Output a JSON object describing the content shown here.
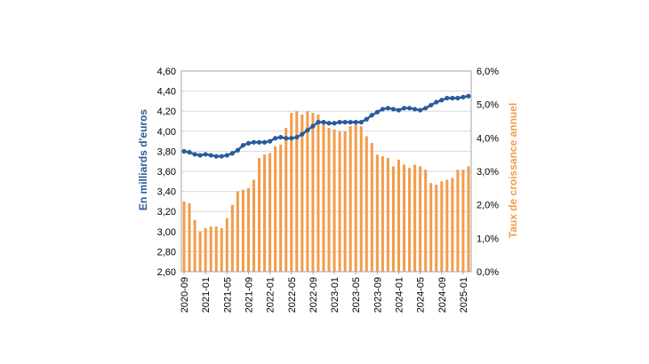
{
  "chart_data": {
    "type": "bar+line",
    "title": "",
    "xlabel": "",
    "ylabel_left": "En milliards d'euros",
    "ylabel_right": "Taux de croissance annuel",
    "y_left": {
      "min": 2.6,
      "max": 4.6,
      "step": 0.2,
      "tick_labels": [
        "2,60",
        "2,80",
        "3,00",
        "3,20",
        "3,40",
        "3,60",
        "3,80",
        "4,00",
        "4,20",
        "4,40",
        "4,60"
      ]
    },
    "y_right": {
      "min": 0.0,
      "max": 6.0,
      "step": 1.0,
      "tick_labels": [
        "0,0%",
        "1,0%",
        "2,0%",
        "3,0%",
        "4,0%",
        "5,0%",
        "6,0%"
      ]
    },
    "x_tick_labels": [
      "2020-09",
      "2021-01",
      "2021-05",
      "2021-09",
      "2022-01",
      "2022-05",
      "2022-09",
      "2023-01",
      "2023-05",
      "2023-09",
      "2024-01",
      "2024-05",
      "2024-09",
      "2025-01"
    ],
    "x_tick_every": 4,
    "categories": [
      "2020-09",
      "2020-10",
      "2020-11",
      "2020-12",
      "2021-01",
      "2021-02",
      "2021-03",
      "2021-04",
      "2021-05",
      "2021-06",
      "2021-07",
      "2021-08",
      "2021-09",
      "2021-10",
      "2021-11",
      "2021-12",
      "2022-01",
      "2022-02",
      "2022-03",
      "2022-04",
      "2022-05",
      "2022-06",
      "2022-07",
      "2022-08",
      "2022-09",
      "2022-10",
      "2022-11",
      "2022-12",
      "2023-01",
      "2023-02",
      "2023-03",
      "2023-04",
      "2023-05",
      "2023-06",
      "2023-07",
      "2023-08",
      "2023-09",
      "2023-10",
      "2023-11",
      "2023-12",
      "2024-01",
      "2024-02",
      "2024-03",
      "2024-04",
      "2024-05",
      "2024-06",
      "2024-07",
      "2024-08",
      "2024-09",
      "2024-10",
      "2024-11",
      "2024-12",
      "2025-01",
      "2025-02"
    ],
    "series": [
      {
        "type": "bar",
        "axis": "right",
        "color": "#f39c4a",
        "values": [
          2.1,
          2.05,
          1.55,
          1.2,
          1.3,
          1.35,
          1.35,
          1.3,
          1.6,
          2.0,
          2.4,
          2.45,
          2.5,
          2.75,
          3.4,
          3.5,
          3.55,
          3.75,
          3.8,
          4.3,
          4.75,
          4.8,
          4.7,
          4.8,
          4.75,
          4.7,
          4.5,
          4.3,
          4.25,
          4.2,
          4.2,
          4.35,
          4.4,
          4.35,
          4.05,
          3.85,
          3.5,
          3.45,
          3.4,
          3.15,
          3.35,
          3.2,
          3.1,
          3.2,
          3.15,
          3.05,
          2.65,
          2.6,
          2.7,
          2.75,
          2.8,
          3.05,
          3.05,
          3.15
        ]
      },
      {
        "type": "line",
        "axis": "left",
        "color": "#2b5a9b",
        "values": [
          3.8,
          3.79,
          3.77,
          3.76,
          3.77,
          3.76,
          3.75,
          3.75,
          3.76,
          3.78,
          3.81,
          3.86,
          3.88,
          3.89,
          3.89,
          3.89,
          3.9,
          3.93,
          3.94,
          3.93,
          3.93,
          3.94,
          3.97,
          4.01,
          4.05,
          4.09,
          4.09,
          4.08,
          4.08,
          4.09,
          4.09,
          4.09,
          4.09,
          4.09,
          4.12,
          4.16,
          4.19,
          4.22,
          4.23,
          4.22,
          4.21,
          4.23,
          4.23,
          4.22,
          4.21,
          4.23,
          4.26,
          4.29,
          4.31,
          4.33,
          4.33,
          4.33,
          4.34,
          4.35
        ]
      }
    ],
    "grid": "horizontal",
    "legend": "none"
  }
}
